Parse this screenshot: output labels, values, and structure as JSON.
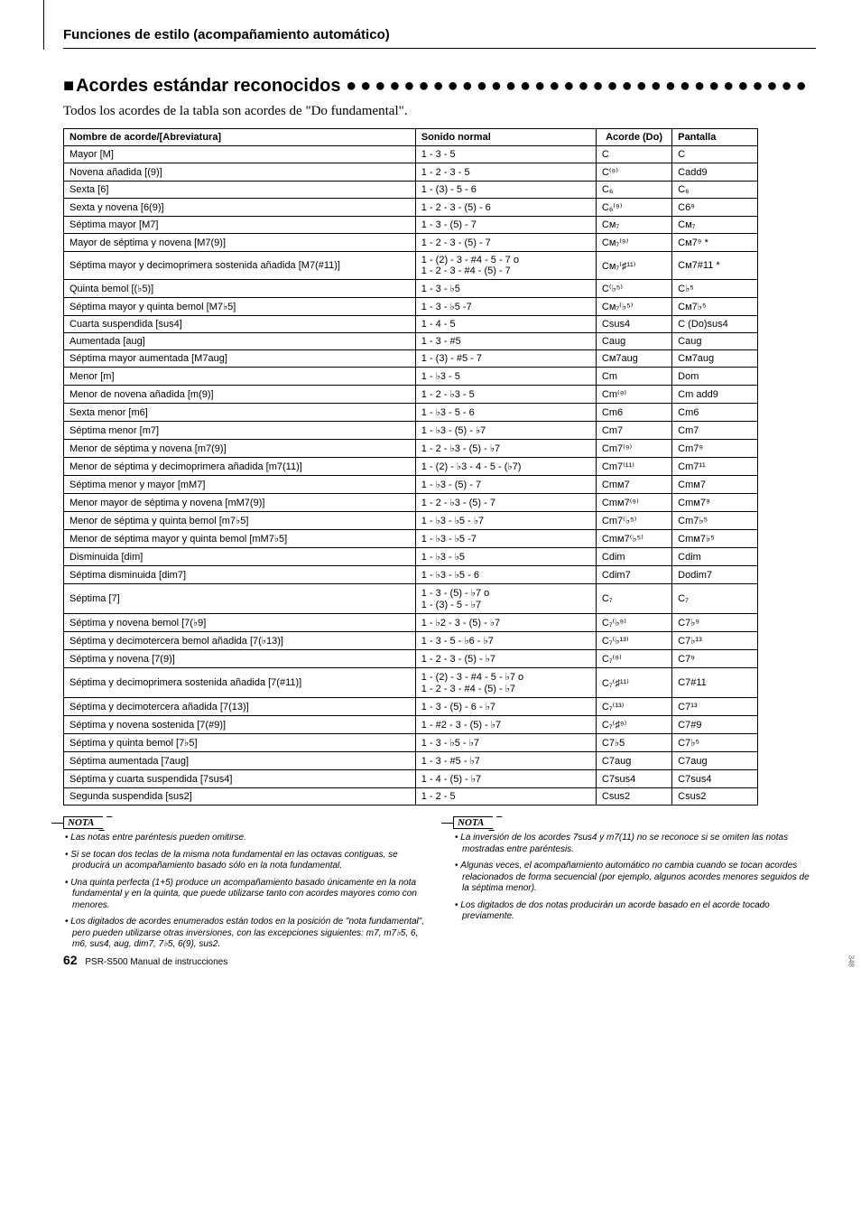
{
  "header": {
    "title": "Funciones de estilo (acompañamiento automático)"
  },
  "section": {
    "title": "Acordes estándar reconocidos",
    "dots": "●●●●●●●●●●●●●●●●●●●●●●●●●●●●●●●●",
    "intro": "Todos los acordes de la tabla son acordes de \"Do fundamental\"."
  },
  "table": {
    "headers": {
      "name": "Nombre de acorde/[Abreviatura]",
      "sound": "Sonido normal",
      "chord": "Acorde (Do)",
      "display": "Pantalla"
    },
    "rows": [
      {
        "n": "Mayor [M]",
        "s": "1 - 3 - 5",
        "c": "C",
        "d": "C"
      },
      {
        "n": "Novena añadida [(9)]",
        "s": "1 - 2 - 3 - 5",
        "c": "C⁽⁹⁾",
        "d": "Cadd9"
      },
      {
        "n": "Sexta [6]",
        "s": "1 - (3) - 5 - 6",
        "c": "C₆",
        "d": "C₆"
      },
      {
        "n": "Sexta y novena [6(9)]",
        "s": "1 - 2 - 3 - (5) - 6",
        "c": "C₆⁽⁹⁾",
        "d": "C6⁹"
      },
      {
        "n": "Séptima mayor [M7]",
        "s": "1 - 3 - (5) - 7",
        "c": "Cᴍ₇",
        "d": "Cᴍ₇"
      },
      {
        "n": "Mayor de séptima y novena [M7(9)]",
        "s": "1 - 2 - 3 - (5) - 7",
        "c": "Cᴍ₇⁽⁹⁾",
        "d": "Cᴍ7⁹ *"
      },
      {
        "n": "Séptima mayor y decimoprimera sostenida añadida [M7(#11)]",
        "s": "1 - (2) - 3 - #4 - 5 - 7 o\n1 - 2 - 3 - #4 - (5) - 7",
        "c": "Cᴍ₇⁽♯¹¹⁾",
        "d": "Cᴍ7#11 *"
      },
      {
        "n": "Quinta bemol [(♭5)]",
        "s": "1 - 3 - ♭5",
        "c": "C⁽♭⁵⁾",
        "d": "C♭⁵"
      },
      {
        "n": "Séptima mayor y quinta bemol [M7♭5]",
        "s": "1 - 3 - ♭5 -7",
        "c": "Cᴍ₇⁽♭⁵⁾",
        "d": "Cᴍ7♭⁵"
      },
      {
        "n": "Cuarta suspendida [sus4]",
        "s": "1 - 4 - 5",
        "c": "Csus4",
        "d": "C (Do)sus4"
      },
      {
        "n": "Aumentada [aug]",
        "s": "1 - 3 - #5",
        "c": "Caug",
        "d": "Caug"
      },
      {
        "n": "Séptima mayor aumentada [M7aug]",
        "s": "1 - (3) - #5 - 7",
        "c": "Cᴍ7aug",
        "d": "Cᴍ7aug"
      },
      {
        "n": "Menor [m]",
        "s": "1 - ♭3 - 5",
        "c": "Cm",
        "d": "Dom"
      },
      {
        "n": "Menor de novena añadida [m(9)]",
        "s": "1 - 2 - ♭3 - 5",
        "c": "Cm⁽⁹⁾",
        "d": "Cm add9"
      },
      {
        "n": "Sexta menor [m6]",
        "s": "1 - ♭3 - 5 - 6",
        "c": "Cm6",
        "d": "Cm6"
      },
      {
        "n": "Séptima menor [m7]",
        "s": "1 - ♭3 - (5) - ♭7",
        "c": "Cm7",
        "d": "Cm7"
      },
      {
        "n": "Menor de séptima y novena [m7(9)]",
        "s": "1 - 2 - ♭3 - (5) - ♭7",
        "c": "Cm7⁽⁹⁾",
        "d": "Cm7⁹"
      },
      {
        "n": "Menor de séptima y decimoprimera añadida [m7(11)]",
        "s": "1 - (2) - ♭3 - 4 - 5 - (♭7)",
        "c": "Cm7⁽¹¹⁾",
        "d": "Cm7¹¹"
      },
      {
        "n": "Séptima menor y mayor [mM7]",
        "s": "1 - ♭3 - (5) - 7",
        "c": "Cmᴍ7",
        "d": "Cmᴍ7"
      },
      {
        "n": "Menor mayor de séptima y novena [mM7(9)]",
        "s": "1 - 2 - ♭3 - (5) - 7",
        "c": "Cmᴍ7⁽⁹⁾",
        "d": "Cmᴍ7⁹"
      },
      {
        "n": "Menor de séptima y quinta bemol [m7♭5]",
        "s": "1 - ♭3 - ♭5 - ♭7",
        "c": "Cm7⁽♭⁵⁾",
        "d": "Cm7♭⁵"
      },
      {
        "n": "Menor de séptima mayor y quinta bemol [mM7♭5]",
        "s": "1 - ♭3 - ♭5 -7",
        "c": "Cmᴍ7⁽♭⁵⁾",
        "d": "Cmᴍ7♭⁵"
      },
      {
        "n": "Disminuida [dim]",
        "s": "1 - ♭3 - ♭5",
        "c": "Cdim",
        "d": "Cdim"
      },
      {
        "n": "Séptima disminuida [dim7]",
        "s": "1 - ♭3 - ♭5 - 6",
        "c": "Cdim7",
        "d": "Dodim7"
      },
      {
        "n": "Séptima [7]",
        "s": "1 - 3 - (5) - ♭7 o\n1 - (3) - 5 - ♭7",
        "c": "C₇",
        "d": "C₇"
      },
      {
        "n": "Séptima y novena bemol [7(♭9]",
        "s": "1 - ♭2 - 3 - (5) - ♭7",
        "c": "C₇⁽♭⁹⁾",
        "d": "C7♭⁹"
      },
      {
        "n": "Séptima y decimotercera bemol añadida [7(♭13)]",
        "s": "1 - 3 - 5 - ♭6 - ♭7",
        "c": "C₇⁽♭¹³⁾",
        "d": "C7♭¹³"
      },
      {
        "n": "Séptima y novena [7(9)]",
        "s": "1 - 2 - 3 - (5) - ♭7",
        "c": "C₇⁽⁹⁾",
        "d": "C7⁹"
      },
      {
        "n": "Séptima y decimoprimera sostenida añadida [7(#11)]",
        "s": "1 - (2) - 3 - #4 - 5 - ♭7 o\n1 - 2 - 3 - #4 - (5) - ♭7",
        "c": "C₇⁽♯¹¹⁾",
        "d": "C7#11"
      },
      {
        "n": "Séptima y decimotercera añadida [7(13)]",
        "s": "1 - 3 - (5) - 6 - ♭7",
        "c": "C₇⁽¹³⁾",
        "d": "C7¹³"
      },
      {
        "n": "Séptima y novena sostenida [7(#9)]",
        "s": "1 - #2 - 3 - (5) - ♭7",
        "c": "C₇⁽♯⁹⁾",
        "d": "C7#9"
      },
      {
        "n": "Séptima y quinta bemol [7♭5]",
        "s": "1 - 3 - ♭5 - ♭7",
        "c": "C7♭5",
        "d": "C7♭⁵"
      },
      {
        "n": "Séptima aumentada [7aug]",
        "s": "1 - 3 - #5 - ♭7",
        "c": "C7aug",
        "d": "C7aug"
      },
      {
        "n": "Séptima y cuarta suspendida [7sus4]",
        "s": "1 - 4 - (5) - ♭7",
        "c": "C7sus4",
        "d": "C7sus4"
      },
      {
        "n": "Segunda suspendida [sus2]",
        "s": "1 - 2 - 5",
        "c": "Csus2",
        "d": "Csus2"
      }
    ]
  },
  "notes": {
    "label": "NOTA",
    "left": [
      "Las notas entre paréntesis pueden omitirse.",
      "Si se tocan dos teclas de la misma nota fundamental en las octavas contiguas, se producirá un acompañamiento basado sólo en la nota fundamental.",
      "Una quinta perfecta (1+5) produce un acompañamiento basado únicamente en la nota fundamental y en la quinta, que puede utilizarse tanto con acordes mayores como con menores.",
      "Los digitados de acordes enumerados están todos en la posición de \"nota fundamental\", pero pueden utilizarse otras inversiones, con las excepciones siguientes: m7, m7♭5, 6, m6, sus4, aug, dim7, 7♭5, 6(9), sus2."
    ],
    "right": [
      "La inversión de los acordes 7sus4 y m7(11) no se reconoce si se omiten las notas mostradas entre paréntesis.",
      "Algunas veces, el acompañamiento automático no cambia cuando se tocan acordes relacionados de forma secuencial (por ejemplo, algunos acordes menores seguidos de la séptima menor).",
      "Los digitados de dos notas producirán un acorde basado en el acorde tocado previamente."
    ]
  },
  "footer": {
    "page_num": "62",
    "doc": "PSR-S500   Manual de instrucciones",
    "side": "348"
  }
}
